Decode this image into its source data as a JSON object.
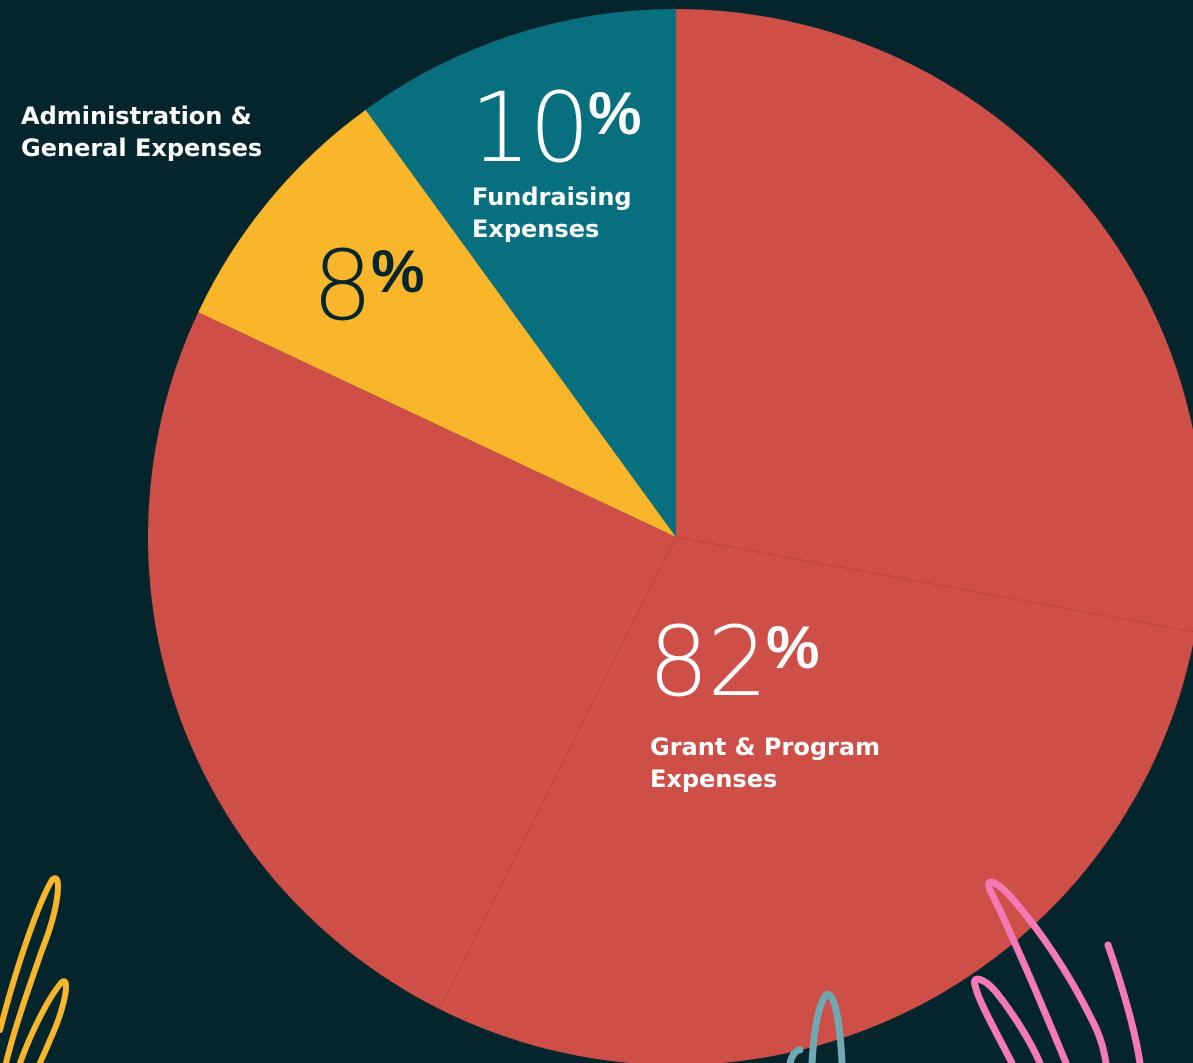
{
  "chart_data": {
    "type": "pie",
    "slices": [
      {
        "name": "Grant & Program Expenses",
        "value": 82,
        "percent_label": "82",
        "color": "#cd4f48",
        "label_lines": [
          "Grant & Program",
          "Expenses"
        ]
      },
      {
        "name": "Administration & General Expenses",
        "value": 8,
        "percent_label": "8",
        "color": "#f9b62a",
        "label_lines": [
          "Administration &",
          "General Expenses"
        ]
      },
      {
        "name": "Fundraising Expenses",
        "value": 10,
        "percent_label": "10",
        "color": "#086f7f",
        "label_lines": [
          "Fundraising",
          "Expenses"
        ]
      }
    ],
    "percent_symbol": "%"
  },
  "colors": {
    "background": "#05252d",
    "percent_dark": "#05252d",
    "percent_light": "#ffffff",
    "decor_yellow": "#f9b62a",
    "decor_pink": "#f37ab5",
    "decor_teal": "#6fa8b3"
  }
}
